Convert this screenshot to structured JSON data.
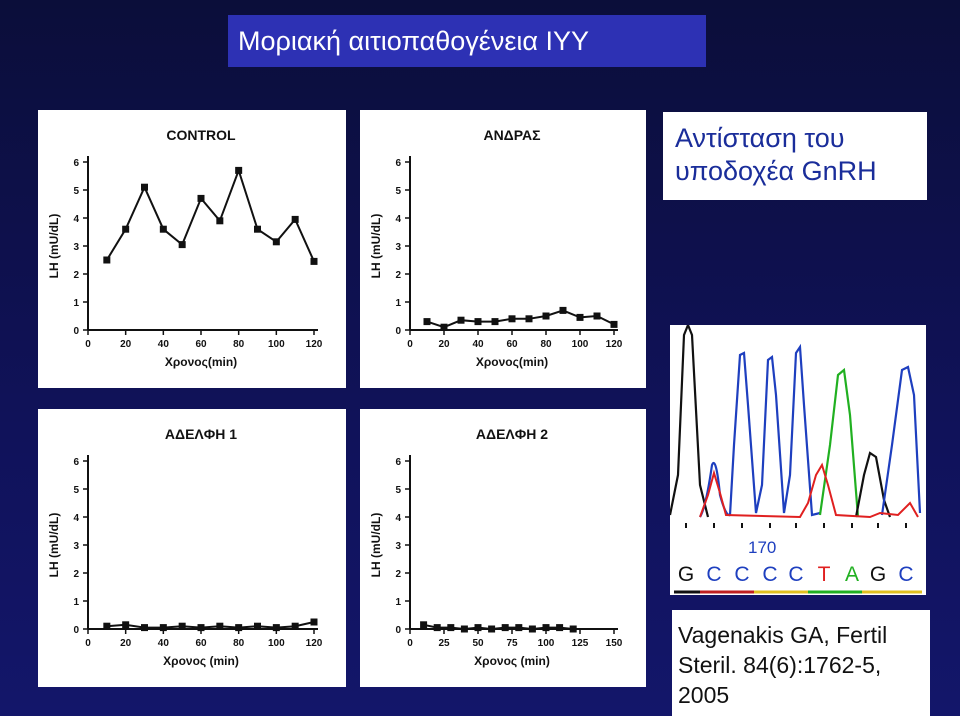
{
  "slide": {
    "title": "Μοριακή αιτιοπαθογένεια ΙΥΥ",
    "subtitle_line1": "Αντίσταση του",
    "subtitle_line2": "υποδοχέα GnRH",
    "reference_line1": "Vagenakis GA, Fertil",
    "reference_line2": "Steril. 84(6):1762-5,",
    "reference_line3": "2005"
  },
  "sequence": {
    "position_label": "170",
    "bases": [
      {
        "letter": "G",
        "color": "#111111"
      },
      {
        "letter": "C",
        "color": "#1e3fbf"
      },
      {
        "letter": "C",
        "color": "#1e3fbf"
      },
      {
        "letter": "C",
        "color": "#1e3fbf"
      },
      {
        "letter": "C",
        "color": "#1e3fbf"
      },
      {
        "letter": "T",
        "color": "#e02020"
      },
      {
        "letter": "A",
        "color": "#21b021"
      },
      {
        "letter": "G",
        "color": "#111111"
      },
      {
        "letter": "C",
        "color": "#1e3fbf"
      }
    ]
  },
  "chart_data": [
    {
      "type": "line",
      "title": "CONTROL",
      "xlabel": "Χρονος(min)",
      "ylabel": "LH (mU/dL)",
      "xlim": [
        0,
        120
      ],
      "ylim": [
        0,
        6
      ],
      "xticks": [
        0,
        20,
        40,
        60,
        80,
        100,
        120
      ],
      "yticks": [
        0,
        1,
        2,
        3,
        4,
        5,
        6
      ],
      "x": [
        10,
        20,
        30,
        40,
        50,
        60,
        70,
        80,
        90,
        100,
        110,
        120
      ],
      "y": [
        2.5,
        3.6,
        5.1,
        3.6,
        3.05,
        4.7,
        3.9,
        5.7,
        3.6,
        3.15,
        3.95,
        2.45
      ]
    },
    {
      "type": "line",
      "title": "ΑΝΔΡΑΣ",
      "xlabel": "Χρονος(min)",
      "ylabel": "LH (mU/dL)",
      "xlim": [
        0,
        120
      ],
      "ylim": [
        0,
        6
      ],
      "xticks": [
        0,
        20,
        40,
        60,
        80,
        100,
        120
      ],
      "yticks": [
        0,
        1,
        2,
        3,
        4,
        5,
        6
      ],
      "x": [
        10,
        20,
        30,
        40,
        50,
        60,
        70,
        80,
        90,
        100,
        110,
        120
      ],
      "y": [
        0.3,
        0.1,
        0.35,
        0.3,
        0.3,
        0.4,
        0.4,
        0.5,
        0.7,
        0.45,
        0.5,
        0.2
      ]
    },
    {
      "type": "line",
      "title": "ΑΔΕΛΦΗ 1",
      "xlabel": "Χρονος (min)",
      "ylabel": "LH (mU/dL)",
      "xlim": [
        0,
        120
      ],
      "ylim": [
        0,
        6
      ],
      "xticks": [
        0,
        20,
        40,
        60,
        80,
        100,
        120
      ],
      "yticks": [
        0,
        1,
        2,
        3,
        4,
        5,
        6
      ],
      "x": [
        10,
        20,
        30,
        40,
        50,
        60,
        70,
        80,
        90,
        100,
        110,
        120
      ],
      "y": [
        0.1,
        0.15,
        0.05,
        0.05,
        0.1,
        0.05,
        0.1,
        0.05,
        0.1,
        0.05,
        0.1,
        0.25
      ]
    },
    {
      "type": "line",
      "title": "ΑΔΕΛΦΗ 2",
      "xlabel": "Χρονος (min)",
      "ylabel": "LH (mU/dL)",
      "xlim": [
        0,
        150
      ],
      "ylim": [
        0,
        6
      ],
      "xticks": [
        0,
        25,
        50,
        75,
        100,
        125,
        150
      ],
      "yticks": [
        0,
        1,
        2,
        3,
        4,
        5,
        6
      ],
      "x": [
        10,
        20,
        30,
        40,
        50,
        60,
        70,
        80,
        90,
        100,
        110,
        120
      ],
      "y": [
        0.15,
        0.05,
        0.05,
        0.0,
        0.05,
        0.0,
        0.05,
        0.05,
        0.0,
        0.05,
        0.05,
        0.0
      ]
    }
  ]
}
